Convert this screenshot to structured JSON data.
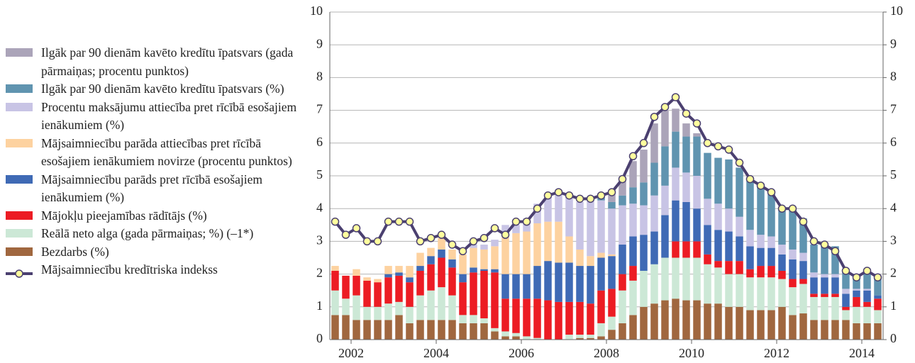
{
  "chart_data": {
    "type": "bar",
    "categories": [
      null,
      "2002",
      null,
      null,
      null,
      null,
      null,
      null,
      null,
      "2004",
      null,
      null,
      null,
      null,
      null,
      null,
      null,
      "2006",
      null,
      null,
      null,
      null,
      null,
      null,
      null,
      "2008",
      null,
      null,
      null,
      null,
      null,
      null,
      null,
      "2010",
      null,
      null,
      null,
      null,
      null,
      null,
      null,
      "2012",
      null,
      null,
      null,
      null,
      null,
      null,
      null,
      "2014",
      null,
      null
    ],
    "ylim": [
      0,
      10
    ],
    "yticks": [
      0,
      1,
      2,
      3,
      4,
      5,
      6,
      7,
      8,
      9,
      10
    ],
    "y2lim": [
      0,
      10
    ],
    "y2ticks": [
      0,
      1,
      2,
      3,
      4,
      5,
      6,
      7,
      8,
      9,
      10
    ],
    "grid": true,
    "series": [
      {
        "name": "Ilgāk par 90 dienām kavēto kredītu īpatsvars (gada pārmaiņas; procentu punktos)",
        "color": "#aba4b9",
        "values": [
          0,
          0,
          0,
          0,
          0,
          0,
          0,
          0,
          0,
          0,
          0,
          0,
          0,
          0,
          0,
          0,
          0,
          0,
          0,
          0,
          0,
          0,
          0,
          0,
          0,
          0.1,
          0.3,
          0.5,
          0.8,
          1.0,
          1.2,
          1.1,
          0.7,
          0.4,
          0.1,
          0,
          0,
          0,
          0,
          0,
          0,
          0,
          0,
          0,
          0,
          0,
          0,
          0,
          0,
          0,
          0,
          0
        ]
      },
      {
        "name": "Ilgāk par 90 dienām kavēto kredītu īpatsvars (%)",
        "color": "#6094b0",
        "values": [
          0,
          0,
          0,
          0,
          0,
          0,
          0,
          0,
          0,
          0,
          0,
          0,
          0,
          0,
          0,
          0,
          0,
          0,
          0,
          0,
          0,
          0,
          0,
          0,
          0,
          0.1,
          0.2,
          0.3,
          0.5,
          0.7,
          1.0,
          1.2,
          1.1,
          1.1,
          1.2,
          1.4,
          1.4,
          1.5,
          1.5,
          1.5,
          1.45,
          1.3,
          1.1,
          1.2,
          1.05,
          0.85,
          0.85,
          0.85,
          0.5,
          0.45,
          0.5,
          0.55
        ]
      },
      {
        "name": "Procentu maksājumu attiecība pret rīcībā esošajiem ienākumiem (%)",
        "color": "#c8c4e5",
        "values": [
          0,
          0,
          0,
          0,
          0,
          0,
          0,
          0,
          0,
          0,
          0,
          0,
          0,
          0.1,
          0.15,
          0.2,
          0.3,
          0.25,
          0.4,
          0.6,
          0.8,
          0.85,
          1.2,
          1.45,
          1.7,
          1.6,
          1.4,
          1.2,
          1.0,
          0.9,
          1.1,
          0.9,
          1.0,
          0.9,
          1.0,
          0.8,
          0.8,
          0.7,
          0.6,
          0.5,
          0.4,
          0.35,
          0.3,
          0.3,
          0.25,
          0.15,
          0.1,
          0.1,
          0.15,
          0.05,
          0.05,
          0
        ]
      },
      {
        "name": "Mājsaimniecību parāda attiecības pret rīcībā esošajiem ienākumiem novirze (procentu punktos)",
        "color": "#fdd2a0",
        "values": [
          0.15,
          0,
          0.2,
          0.1,
          0.1,
          0.25,
          0.2,
          0.35,
          0.4,
          0.25,
          0.35,
          0.3,
          0.6,
          0.6,
          0.6,
          0.7,
          1.2,
          1.25,
          1.3,
          1.3,
          1.2,
          1.25,
          0.8,
          0.5,
          0.3,
          0.15,
          0.05,
          0,
          0,
          0,
          0,
          0,
          0,
          0,
          0,
          0,
          0,
          0,
          0,
          0,
          0,
          0,
          0,
          0,
          0,
          0,
          0,
          0,
          0,
          0,
          0,
          0
        ]
      },
      {
        "name": "Mājsaimniecību parāds pret rīcībā esošajiem ienākumiem (%)",
        "color": "#3f6ab5",
        "values": [
          0,
          0,
          0,
          0,
          0,
          0.1,
          0.1,
          0.15,
          0.15,
          0.25,
          0.25,
          0.25,
          0.25,
          0.15,
          0.05,
          0.1,
          0.75,
          0.75,
          0.75,
          1.0,
          1.2,
          1.2,
          1.2,
          1.1,
          1.15,
          1.0,
          1.0,
          0.9,
          0.9,
          1.1,
          1.0,
          1.3,
          1.25,
          1.2,
          1.0,
          0.9,
          0.95,
          0.9,
          0.75,
          0.7,
          0.55,
          0.55,
          0.5,
          0.6,
          0.55,
          0.5,
          0.5,
          0.5,
          0.4,
          0.2,
          0.35,
          0.1
        ]
      },
      {
        "name": "Mājokļu pieejamības rādītājs (%)",
        "color": "#ec1c24",
        "values": [
          0.6,
          0.7,
          0.6,
          0.8,
          0.75,
          0.8,
          0.8,
          0.75,
          0.75,
          0.8,
          0.9,
          0.85,
          1.0,
          1.3,
          1.45,
          1.7,
          1.0,
          1.05,
          1.15,
          1.2,
          1.2,
          1.15,
          1.0,
          1.0,
          0.95,
          1.0,
          0.85,
          0.5,
          0.45,
          0,
          0,
          0,
          0.5,
          0.5,
          0.5,
          0.3,
          0.2,
          0.4,
          0.4,
          0.25,
          0.35,
          0.35,
          0.25,
          0.25,
          0.15,
          0.1,
          0.1,
          0.1,
          0.1,
          0.3,
          0.15,
          0.35
        ]
      },
      {
        "name": "Reālā neto alga (gada pārmaiņas; %) (–1*)",
        "color": "#cce8d6",
        "values": [
          0.75,
          0.5,
          0.75,
          0.4,
          0.4,
          0.5,
          0.4,
          0.5,
          0.75,
          0.9,
          1.0,
          0.75,
          0.25,
          0.25,
          0.15,
          0.1,
          0.15,
          0.1,
          0.1,
          0.05,
          0,
          0,
          0.15,
          0.1,
          0.1,
          0.4,
          0.4,
          1.0,
          1.05,
          1.1,
          1.2,
          1.3,
          1.25,
          1.3,
          1.3,
          1.2,
          1.1,
          1.0,
          1.0,
          1.0,
          1.0,
          1.0,
          0.85,
          0.85,
          0.9,
          0.7,
          0.7,
          0.7,
          0.3,
          0.5,
          0.5,
          0.4
        ]
      },
      {
        "name": "Bezdarbs (%)",
        "color": "#a0673f",
        "values": [
          0.75,
          0.75,
          0.6,
          0.6,
          0.6,
          0.6,
          0.75,
          0.5,
          0.6,
          0.6,
          0.6,
          0.6,
          0.5,
          0.5,
          0.5,
          0.25,
          0.1,
          0.1,
          0,
          0,
          0,
          0,
          0,
          0.05,
          0.05,
          0.1,
          0.3,
          0.5,
          0.75,
          1.0,
          1.1,
          1.2,
          1.25,
          1.2,
          1.2,
          1.1,
          1.1,
          1.0,
          1.0,
          0.9,
          0.9,
          0.9,
          1.0,
          0.75,
          0.8,
          0.6,
          0.6,
          0.6,
          0.6,
          0.5,
          0.5,
          0.5
        ]
      },
      {
        "name": "Mājsaimniecību kredītriska indekss",
        "type": "line",
        "color": "#4b4070",
        "marker_color": "#ffff9e",
        "values": [
          3.6,
          3.2,
          3.4,
          3.0,
          3.0,
          3.6,
          3.6,
          3.6,
          3.0,
          3.1,
          3.2,
          2.9,
          2.7,
          3.0,
          3.1,
          3.4,
          3.2,
          3.6,
          3.6,
          4.0,
          4.4,
          4.5,
          4.4,
          4.3,
          4.3,
          4.4,
          4.5,
          4.9,
          5.6,
          6.0,
          6.8,
          7.1,
          7.4,
          6.9,
          6.6,
          6.0,
          5.9,
          5.8,
          5.4,
          4.9,
          4.7,
          4.5,
          4.0,
          4.0,
          3.6,
          3.0,
          2.9,
          2.7,
          2.1,
          1.9,
          2.1,
          1.9
        ]
      }
    ]
  }
}
